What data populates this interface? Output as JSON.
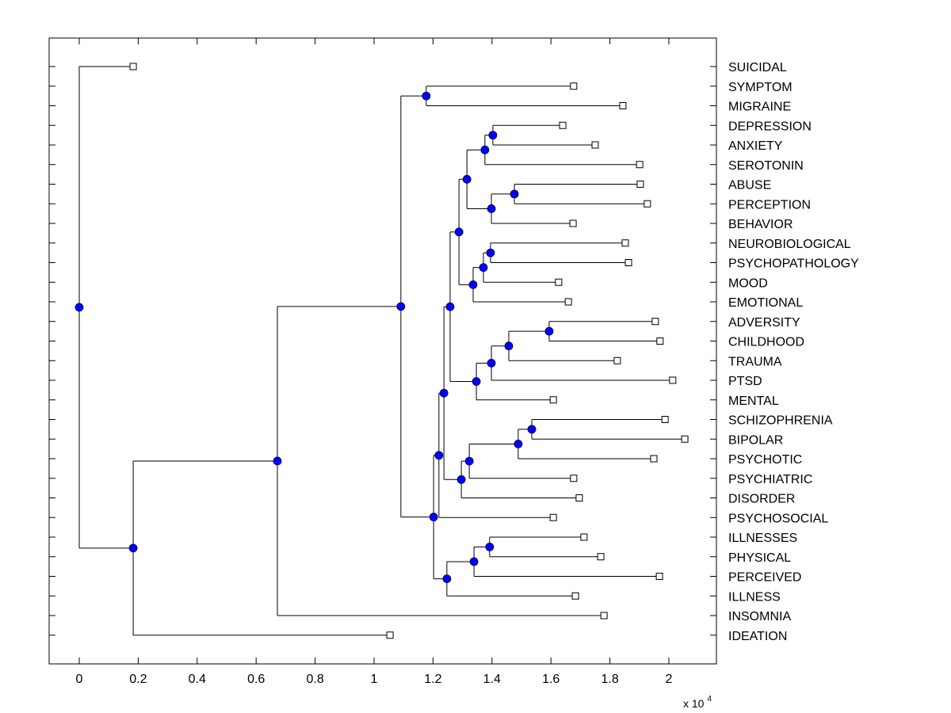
{
  "chart_data": {
    "type": "dendrogram",
    "title": "",
    "xlabel": "",
    "ylabel": "",
    "x_multiplier_label": "x 10",
    "x_multiplier_exponent": "4",
    "xlim": [
      -0.1,
      2.15
    ],
    "x_ticks": [
      0,
      0.2,
      0.4,
      0.6,
      0.8,
      1,
      1.2,
      1.4,
      1.6,
      1.8,
      2
    ],
    "x_tick_labels": [
      "0",
      "0.2",
      "0.4",
      "0.6",
      "0.8",
      "1",
      "1.2",
      "1.4",
      "1.6",
      "1.8",
      "2"
    ],
    "grid": false,
    "colors": {
      "node_fill": "#0000ff",
      "leaf_fill": "#ffffff",
      "line": "#000000"
    },
    "leaves": [
      {
        "label": "SUICIDAL",
        "x": 0.183
      },
      {
        "label": "SYMPTOM",
        "x": 1.677
      },
      {
        "label": "MIGRAINE",
        "x": 1.844
      },
      {
        "label": "DEPRESSION",
        "x": 1.64
      },
      {
        "label": "ANXIETY",
        "x": 1.75
      },
      {
        "label": "SEROTONIN",
        "x": 1.901
      },
      {
        "label": "ABUSE",
        "x": 1.903
      },
      {
        "label": "PERCEPTION",
        "x": 1.927
      },
      {
        "label": "BEHAVIOR",
        "x": 1.675
      },
      {
        "label": "NEUROBIOLOGICAL",
        "x": 1.852
      },
      {
        "label": "PSYCHOPATHOLOGY",
        "x": 1.863
      },
      {
        "label": "MOOD",
        "x": 1.626
      },
      {
        "label": "EMOTIONAL",
        "x": 1.659
      },
      {
        "label": "ADVERSITY",
        "x": 1.954
      },
      {
        "label": "CHILDHOOD",
        "x": 1.97
      },
      {
        "label": "TRAUMA",
        "x": 1.825
      },
      {
        "label": "PTSD",
        "x": 2.013
      },
      {
        "label": "MENTAL",
        "x": 1.608
      },
      {
        "label": "SCHIZOPHRENIA",
        "x": 1.987
      },
      {
        "label": "BIPOLAR",
        "x": 2.054
      },
      {
        "label": "PSYCHOTIC",
        "x": 1.949
      },
      {
        "label": "PSYCHIATRIC",
        "x": 1.677
      },
      {
        "label": "DISORDER",
        "x": 1.696
      },
      {
        "label": "PSYCHOSOCIAL",
        "x": 1.608
      },
      {
        "label": "ILLNESSES",
        "x": 1.712
      },
      {
        "label": "PHYSICAL",
        "x": 1.769
      },
      {
        "label": "PERCEIVED",
        "x": 1.968
      },
      {
        "label": "ILLNESS",
        "x": 1.683
      },
      {
        "label": "INSOMNIA",
        "x": 1.78
      },
      {
        "label": "IDEATION",
        "x": 1.054
      }
    ],
    "nodes": [
      {
        "id": "root",
        "x": 0.0,
        "children": [
          "L0",
          "A"
        ]
      },
      {
        "id": "A",
        "x": 0.183,
        "children": [
          "B",
          "L29"
        ]
      },
      {
        "id": "B",
        "x": 0.672,
        "children": [
          "C",
          "L28"
        ]
      },
      {
        "id": "C",
        "x": 1.091,
        "children": [
          "D",
          "E"
        ]
      },
      {
        "id": "D",
        "x": 1.177,
        "children": [
          "L1",
          "L2"
        ]
      },
      {
        "id": "E",
        "x": 1.202,
        "children": [
          "F",
          "G"
        ]
      },
      {
        "id": "F",
        "x": 1.22,
        "children": [
          "H",
          "L23"
        ]
      },
      {
        "id": "H",
        "x": 1.237,
        "children": [
          "I",
          "J"
        ]
      },
      {
        "id": "I",
        "x": 1.258,
        "children": [
          "K",
          "L"
        ]
      },
      {
        "id": "K",
        "x": 1.288,
        "children": [
          "M",
          "N"
        ]
      },
      {
        "id": "M",
        "x": 1.315,
        "children": [
          "O",
          "P"
        ]
      },
      {
        "id": "O",
        "x": 1.376,
        "children": [
          "Q",
          "L5"
        ]
      },
      {
        "id": "Q",
        "x": 1.403,
        "children": [
          "L3",
          "L4"
        ]
      },
      {
        "id": "P",
        "x": 1.398,
        "children": [
          "R",
          "L8"
        ]
      },
      {
        "id": "R",
        "x": 1.476,
        "children": [
          "L6",
          "L7"
        ]
      },
      {
        "id": "N",
        "x": 1.336,
        "children": [
          "S",
          "L12"
        ]
      },
      {
        "id": "S",
        "x": 1.371,
        "children": [
          "T",
          "L11"
        ]
      },
      {
        "id": "T",
        "x": 1.395,
        "children": [
          "L9",
          "L10"
        ]
      },
      {
        "id": "L",
        "x": 1.347,
        "children": [
          "U",
          "L17"
        ]
      },
      {
        "id": "U",
        "x": 1.398,
        "children": [
          "V",
          "L16"
        ]
      },
      {
        "id": "V",
        "x": 1.457,
        "children": [
          "W",
          "L15"
        ]
      },
      {
        "id": "W",
        "x": 1.594,
        "children": [
          "L13",
          "L14"
        ]
      },
      {
        "id": "J",
        "x": 1.296,
        "children": [
          "X",
          "L22"
        ]
      },
      {
        "id": "X",
        "x": 1.323,
        "children": [
          "Y",
          "L21"
        ]
      },
      {
        "id": "Y",
        "x": 1.489,
        "children": [
          "Z",
          "L20"
        ]
      },
      {
        "id": "Z",
        "x": 1.535,
        "children": [
          "L18",
          "L19"
        ]
      },
      {
        "id": "G",
        "x": 1.247,
        "children": [
          "AA",
          "L27"
        ]
      },
      {
        "id": "AA",
        "x": 1.339,
        "children": [
          "AB",
          "L26"
        ]
      },
      {
        "id": "AB",
        "x": 1.392,
        "children": [
          "L24",
          "L25"
        ]
      }
    ]
  }
}
